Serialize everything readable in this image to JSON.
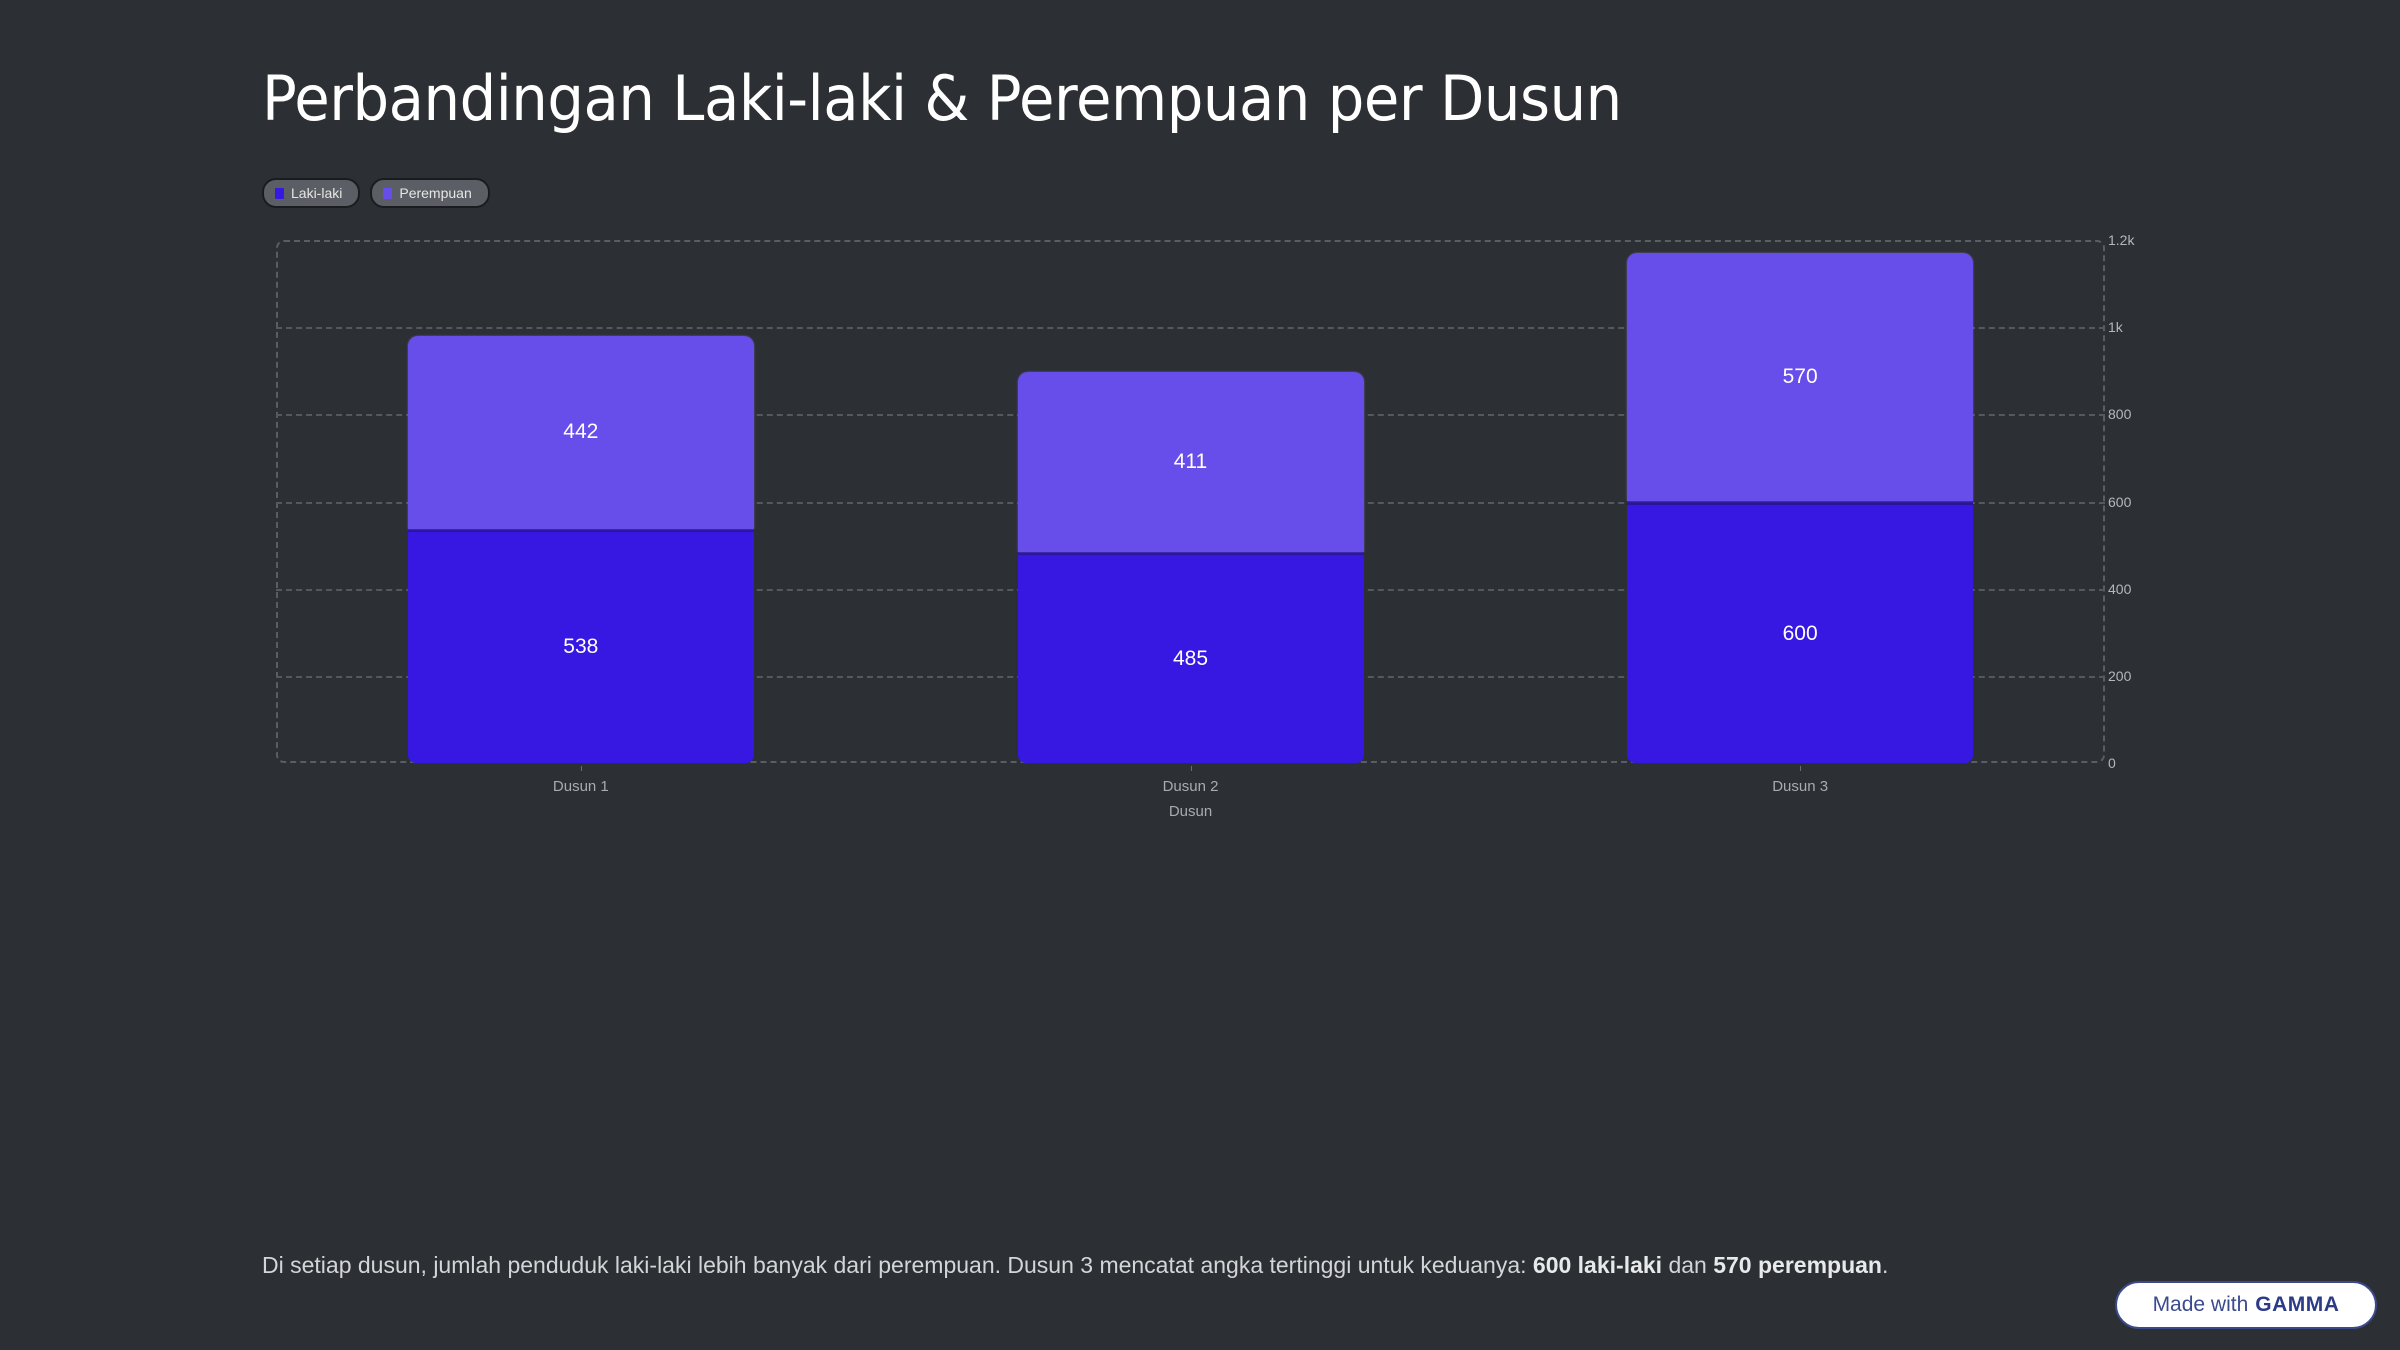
{
  "title": "Perbandingan Laki-laki & Perempuan per Dusun",
  "legend": [
    {
      "label": "Laki-laki",
      "color": "#3718e3"
    },
    {
      "label": "Perempuan",
      "color": "#674de9"
    }
  ],
  "y_ticks": [
    "1.2k",
    "1k",
    "800",
    "600",
    "400",
    "200",
    "0"
  ],
  "footnote": {
    "text_before": "Di setiap dusun, jumlah penduduk laki-laki lebih banyak dari perempuan. Dusun 3 mencatat angka tertinggi untuk keduanya: ",
    "bold1": "600 laki-laki",
    "middle": " dan ",
    "bold2": "570 perempuan",
    "end": "."
  },
  "badge": {
    "prefix": "Made with",
    "brand": "GAMMA"
  },
  "chart_data": {
    "type": "bar",
    "stacked": true,
    "title": "Perbandingan Laki-laki & Perempuan per Dusun",
    "categories": [
      "Dusun 1",
      "Dusun 2",
      "Dusun 3"
    ],
    "series": [
      {
        "name": "Laki-laki",
        "values": [
          538,
          485,
          600
        ],
        "color": "#3718e3"
      },
      {
        "name": "Perempuan",
        "values": [
          442,
          411,
          570
        ],
        "color": "#674de9"
      }
    ],
    "xlabel": "Dusun",
    "ylabel": "",
    "ylim": [
      0,
      1200
    ],
    "y_ticks": [
      0,
      200,
      400,
      600,
      800,
      1000,
      1200
    ],
    "y_tick_labels": [
      "0",
      "200",
      "400",
      "600",
      "800",
      "1k",
      "1.2k"
    ],
    "y_axis_position": "right",
    "grid": true,
    "legend_position": "top-left",
    "data_labels": true
  }
}
